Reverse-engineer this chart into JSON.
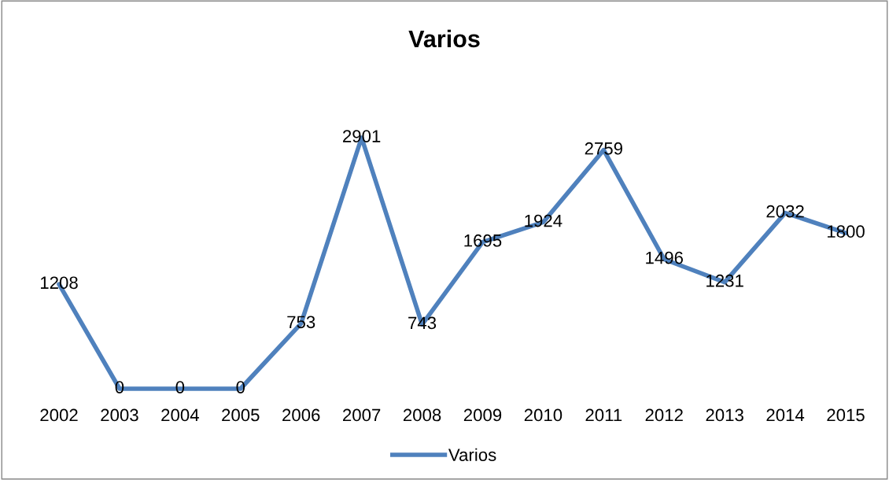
{
  "chart_data": {
    "type": "line",
    "title": "Varios",
    "categories": [
      "2002",
      "2003",
      "2004",
      "2005",
      "2006",
      "2007",
      "2008",
      "2009",
      "2010",
      "2011",
      "2012",
      "2013",
      "2014",
      "2015"
    ],
    "series": [
      {
        "name": "Varios",
        "color": "#4f81bd",
        "values": [
          1208,
          0,
          0,
          0,
          753,
          2901,
          743,
          1695,
          1924,
          2759,
          1496,
          1231,
          2032,
          1800
        ]
      }
    ],
    "data_labels": true,
    "legend": "bottom",
    "grid": false,
    "marker": "none",
    "line_style": "solid"
  }
}
